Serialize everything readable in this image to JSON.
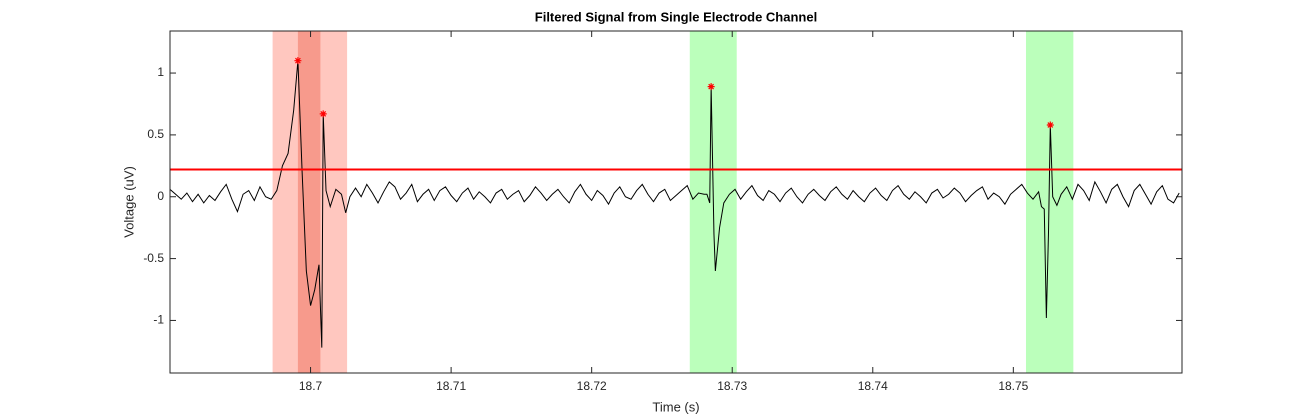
{
  "chart_data": {
    "type": "line",
    "title": "Filtered Signal from Single Electrode Channel",
    "xlabel": "Time (s)",
    "ylabel": "Voltage (uV)",
    "xlim": [
      18.69,
      18.762
    ],
    "ylim": [
      -1.425,
      1.34
    ],
    "xticks": [
      18.7,
      18.71,
      18.72,
      18.73,
      18.74,
      18.75
    ],
    "yticks": [
      -1,
      -0.5,
      0,
      0.5,
      1
    ],
    "threshold": 0.22,
    "threshold_color": "#ff0000",
    "regions": [
      {
        "x0": 18.6973,
        "x1": 18.7026,
        "color": "#ffc7bf"
      },
      {
        "x0": 18.6991,
        "x1": 18.7007,
        "color": "#f79a8c"
      },
      {
        "x0": 18.72698,
        "x1": 18.73032,
        "color": "#bbffbb"
      },
      {
        "x0": 18.7509,
        "x1": 18.75427,
        "color": "#bbffbb"
      }
    ],
    "peaks": {
      "x": [
        18.6991,
        18.7009,
        18.7285,
        18.75263
      ],
      "y": [
        1.1,
        0.67,
        0.89,
        0.58
      ],
      "color": "#ff0000"
    },
    "series": [
      {
        "color": "#000000",
        "x": [
          18.69,
          18.6904,
          18.6908,
          18.6912,
          18.6916,
          18.692,
          18.6924,
          18.6928,
          18.6932,
          18.6936,
          18.694,
          18.6944,
          18.6948,
          18.6952,
          18.6956,
          18.696,
          18.6964,
          18.6968,
          18.6972,
          18.6976,
          18.698,
          18.6984,
          18.6988,
          18.6991,
          18.6994,
          18.6997,
          18.7,
          18.7003,
          18.7006,
          18.7008,
          18.7009,
          18.7011,
          18.7014,
          18.7018,
          18.7022,
          18.7025,
          18.7028,
          18.7032,
          18.7036,
          18.704,
          18.7044,
          18.7048,
          18.7052,
          18.7056,
          18.706,
          18.7064,
          18.7068,
          18.7072,
          18.7076,
          18.708,
          18.7084,
          18.7088,
          18.7092,
          18.7096,
          18.71,
          18.7104,
          18.7108,
          18.7112,
          18.7116,
          18.712,
          18.7124,
          18.7128,
          18.7132,
          18.7136,
          18.714,
          18.7144,
          18.7148,
          18.7152,
          18.7156,
          18.716,
          18.7164,
          18.7168,
          18.7172,
          18.7176,
          18.718,
          18.7184,
          18.7188,
          18.7192,
          18.7196,
          18.72,
          18.7204,
          18.7208,
          18.7212,
          18.7216,
          18.722,
          18.7224,
          18.7228,
          18.7232,
          18.7236,
          18.724,
          18.7244,
          18.7248,
          18.7252,
          18.7256,
          18.726,
          18.7264,
          18.7268,
          18.7272,
          18.7276,
          18.728,
          18.7282,
          18.7284,
          18.7285,
          18.7287,
          18.7288,
          18.7291,
          18.7294,
          18.7298,
          18.7302,
          18.7306,
          18.731,
          18.7314,
          18.7318,
          18.7322,
          18.7326,
          18.733,
          18.7334,
          18.7338,
          18.7342,
          18.7346,
          18.735,
          18.7354,
          18.7358,
          18.7362,
          18.7366,
          18.737,
          18.7374,
          18.7378,
          18.7382,
          18.7386,
          18.739,
          18.7394,
          18.7398,
          18.7402,
          18.7406,
          18.741,
          18.7414,
          18.7418,
          18.7422,
          18.7426,
          18.743,
          18.7434,
          18.7438,
          18.7442,
          18.7446,
          18.745,
          18.7454,
          18.7458,
          18.7462,
          18.7466,
          18.747,
          18.7474,
          18.7478,
          18.7482,
          18.7486,
          18.749,
          18.7494,
          18.7498,
          18.7502,
          18.7506,
          18.751,
          18.7514,
          18.7518,
          18.752,
          18.7522,
          18.75235,
          18.7525,
          18.75263,
          18.7528,
          18.7531,
          18.7534,
          18.7538,
          18.7542,
          18.7546,
          18.755,
          18.7554,
          18.7558,
          18.7562,
          18.7566,
          18.757,
          18.7574,
          18.7578,
          18.7582,
          18.7586,
          18.759,
          18.7594,
          18.7598,
          18.7602,
          18.7606,
          18.761,
          18.7614,
          18.7618
        ],
        "values": [
          0.06,
          0.02,
          -0.02,
          0.03,
          -0.04,
          0.02,
          -0.05,
          0.01,
          -0.03,
          0.04,
          0.1,
          -0.02,
          -0.12,
          0.02,
          0.05,
          -0.03,
          0.08,
          0.0,
          -0.02,
          0.05,
          0.25,
          0.35,
          0.7,
          1.1,
          0.2,
          -0.6,
          -0.88,
          -0.75,
          -0.55,
          -1.22,
          0.67,
          0.05,
          -0.08,
          0.06,
          0.02,
          -0.13,
          0.0,
          0.07,
          0.0,
          0.1,
          0.03,
          -0.05,
          0.04,
          0.12,
          0.08,
          -0.02,
          0.03,
          0.1,
          -0.04,
          0.02,
          0.06,
          -0.03,
          0.05,
          0.08,
          0.01,
          -0.04,
          0.03,
          0.07,
          -0.02,
          0.04,
          0.0,
          -0.05,
          0.03,
          0.06,
          -0.02,
          0.02,
          0.05,
          -0.04,
          0.01,
          0.08,
          0.03,
          -0.03,
          0.02,
          0.06,
          0.0,
          -0.05,
          0.04,
          0.1,
          0.02,
          -0.03,
          0.05,
          0.01,
          -0.06,
          0.03,
          0.08,
          0.0,
          -0.02,
          0.05,
          0.1,
          0.02,
          -0.04,
          0.03,
          0.06,
          -0.03,
          0.01,
          0.05,
          0.09,
          -0.02,
          0.03,
          0.02,
          0.02,
          -0.05,
          0.89,
          -0.3,
          -0.6,
          -0.25,
          -0.05,
          0.02,
          0.06,
          -0.02,
          0.04,
          0.09,
          0.01,
          -0.03,
          0.05,
          0.02,
          -0.04,
          0.03,
          0.07,
          0.0,
          -0.05,
          0.02,
          0.06,
          0.01,
          -0.03,
          0.04,
          0.08,
          0.02,
          -0.02,
          0.05,
          0.0,
          -0.04,
          0.03,
          0.07,
          0.01,
          -0.03,
          0.05,
          0.09,
          0.02,
          -0.02,
          0.04,
          0.0,
          -0.05,
          0.03,
          0.06,
          -0.01,
          0.02,
          0.07,
          0.03,
          -0.04,
          0.01,
          0.05,
          0.08,
          -0.02,
          0.03,
          0.0,
          -0.06,
          0.02,
          0.06,
          0.1,
          0.03,
          -0.02,
          0.04,
          -0.08,
          -0.1,
          -0.98,
          -0.3,
          0.58,
          0.0,
          -0.07,
          0.02,
          0.08,
          -0.02,
          0.1,
          0.05,
          -0.03,
          0.12,
          0.04,
          -0.05,
          0.06,
          0.1,
          0.0,
          -0.08,
          0.05,
          0.1,
          0.02,
          -0.06,
          0.04,
          0.09,
          -0.02,
          -0.05,
          0.03
        ]
      }
    ]
  }
}
